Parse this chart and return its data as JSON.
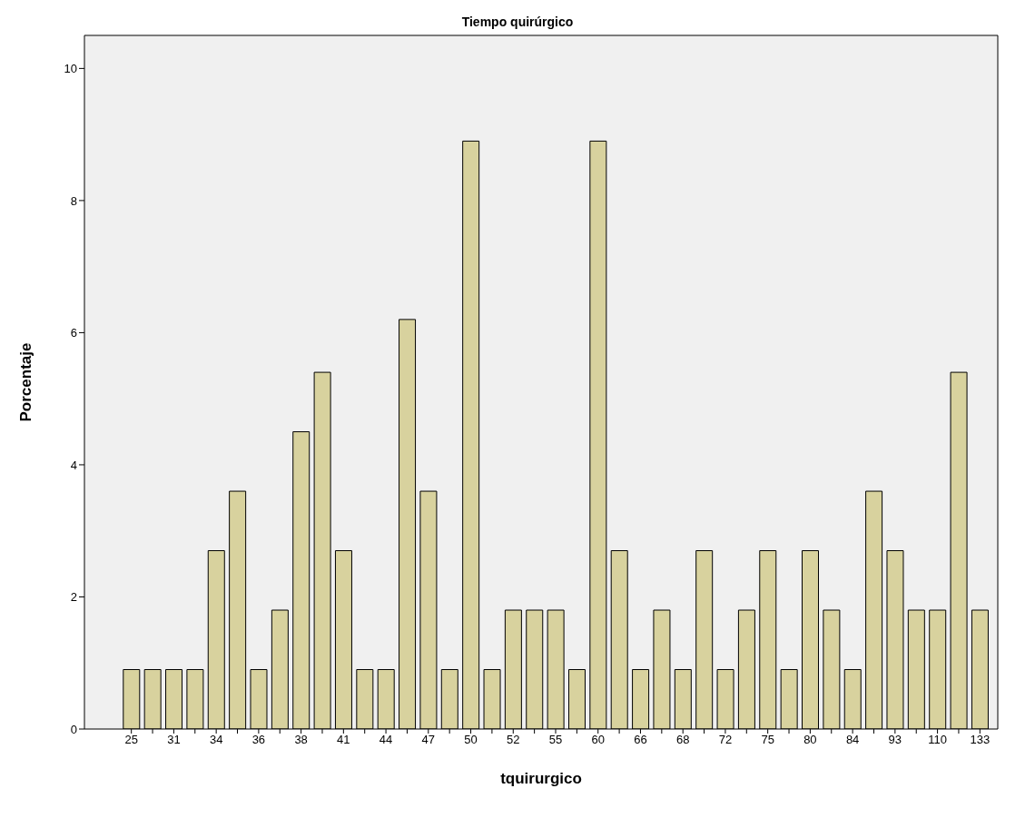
{
  "chart_data": {
    "type": "bar",
    "title": "Tiempo quirúrgico",
    "xlabel": "tquirurgico",
    "ylabel": "Porcentaje",
    "categories": [
      "25",
      null,
      "31",
      null,
      "34",
      null,
      "36",
      null,
      "38",
      null,
      "41",
      null,
      "44",
      null,
      "47",
      null,
      "50",
      null,
      "52",
      null,
      "55",
      null,
      "60",
      null,
      "66",
      null,
      "68",
      null,
      "72",
      null,
      "75",
      null,
      "80",
      null,
      "84",
      null,
      "93",
      null,
      "110",
      null,
      "133"
    ],
    "values": [
      0.9,
      0.9,
      0.9,
      0.9,
      2.7,
      3.6,
      0.9,
      1.8,
      4.5,
      5.4,
      2.7,
      0.9,
      0.9,
      6.2,
      3.6,
      0.9,
      8.9,
      0.9,
      1.8,
      1.8,
      1.8,
      0.9,
      8.9,
      2.7,
      0.9,
      1.8,
      0.9,
      2.7,
      0.9,
      1.8,
      2.7,
      0.9,
      2.7,
      1.8,
      0.9,
      3.6,
      2.7,
      1.8,
      1.8,
      5.4,
      1.8
    ],
    "color": "#d8d29e",
    "ylim": [
      0,
      10.5
    ],
    "yticks": [
      0,
      2,
      4,
      6,
      8,
      10
    ],
    "grid": false
  }
}
